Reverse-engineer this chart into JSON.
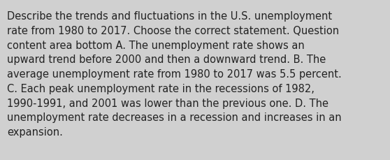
{
  "background_color": "#d0d0d0",
  "font_size": 10.5,
  "font_color": "#222222",
  "font_family": "DejaVu Sans",
  "line1": "Describe the trends and fluctuations in the U.S. unemployment",
  "line2": "rate from 1980 to 2017. Choose the correct statement. Question",
  "line3": "content area bottom A. The unemployment rate shows an",
  "line4": "upward trend before 2000 and then a downward trend. B. The",
  "line5": "average unemployment rate from 1980 to 2017 was 5.5 percent.",
  "line6": "C. Each peak unemployment rate in the recessions of 1982,",
  "line7": "1990-1991, and 2001 was lower than the previous one. D. The",
  "line8": "unemployment rate decreases in a recession and increases in an",
  "line9": "expansion."
}
